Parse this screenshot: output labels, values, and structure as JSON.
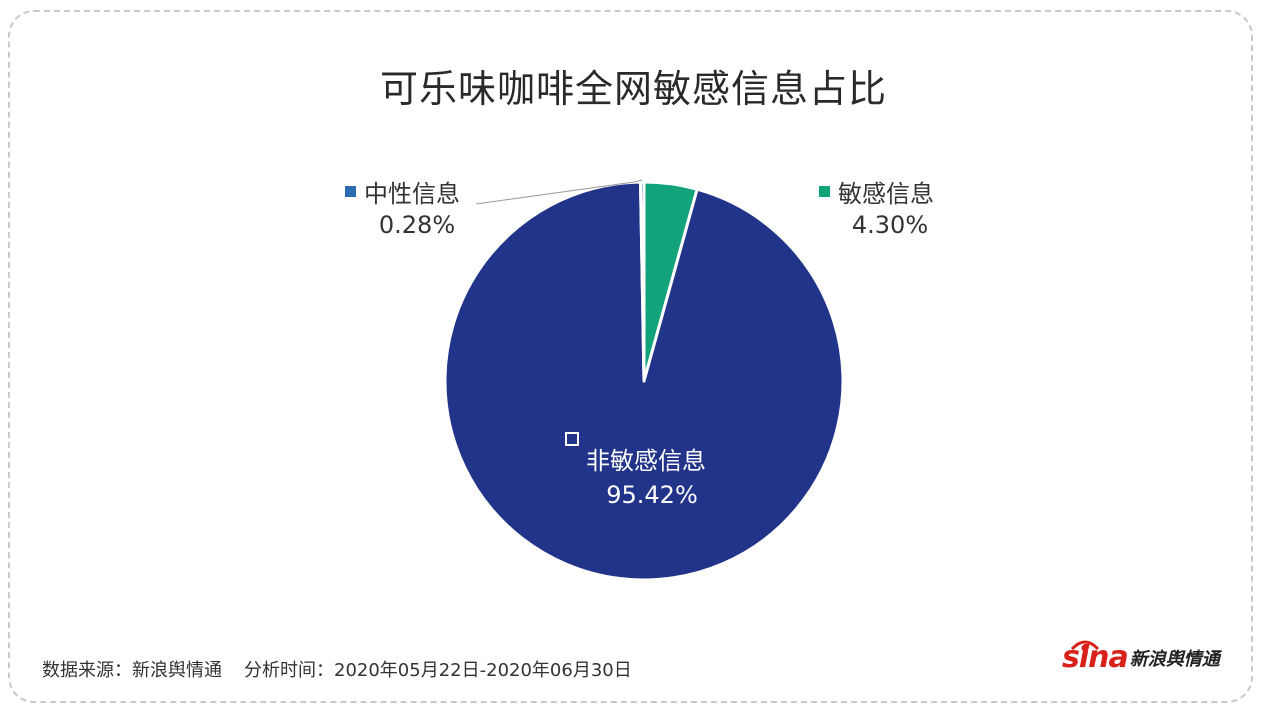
{
  "title": "可乐味咖啡全网敏感信息占比",
  "footer": {
    "source": "数据来源：新浪舆情通",
    "period": "分析时间：2020年05月22日-2020年06月30日"
  },
  "logo": {
    "wordmark": "sina",
    "text": "新浪舆情通"
  },
  "colors": {
    "non_sensitive": "#21348a",
    "sensitive": "#12a37a",
    "neutral": "#2b6cb0",
    "brand_red": "#d8211a"
  },
  "chart_data": {
    "type": "pie",
    "title": "可乐味咖啡全网敏感信息占比",
    "slices": [
      {
        "name": "敏感信息",
        "value": 4.3,
        "label": "4.30%",
        "color": "#12a37a"
      },
      {
        "name": "非敏感信息",
        "value": 95.42,
        "label": "95.42%",
        "color": "#21348a"
      },
      {
        "name": "中性信息",
        "value": 0.28,
        "label": "0.28%",
        "color": "#2b6cb0"
      }
    ],
    "legend": "inline labels"
  }
}
